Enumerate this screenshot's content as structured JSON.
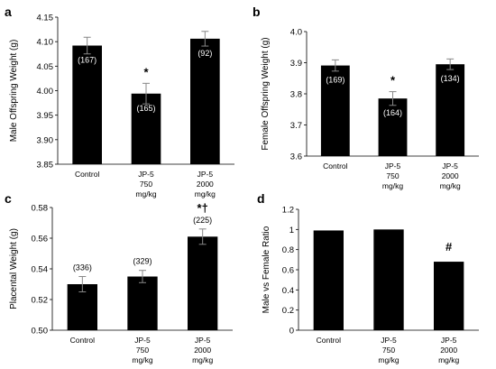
{
  "chart_data": [
    {
      "panel": "a",
      "type": "bar",
      "categories": [
        [
          "Control"
        ],
        [
          "JP-5",
          "750",
          "mg/kg"
        ],
        [
          "JP-5",
          "2000",
          "mg/kg"
        ]
      ],
      "values": [
        4.092,
        3.994,
        4.106
      ],
      "errors": [
        0.017,
        0.021,
        0.015
      ],
      "counts": [
        "(167)",
        "(165)",
        "(92)"
      ],
      "significance": [
        "",
        "*",
        ""
      ],
      "ylabel": "Male Offspring Weight (g)",
      "xlabel": "",
      "ylim": [
        3.85,
        4.15
      ],
      "yticks": [
        "3.85",
        "3.90",
        "3.95",
        "4.00",
        "4.05",
        "4.10",
        "4.15"
      ],
      "grid": false,
      "color": "#000000"
    },
    {
      "panel": "b",
      "type": "bar",
      "categories": [
        [
          "Control"
        ],
        [
          "JP-5",
          "750",
          "mg/kg"
        ],
        [
          "JP-5",
          "2000",
          "mg/kg"
        ]
      ],
      "values": [
        3.891,
        3.785,
        3.895
      ],
      "errors": [
        0.018,
        0.022,
        0.017
      ],
      "counts": [
        "(169)",
        "(164)",
        "(134)"
      ],
      "significance": [
        "",
        "*",
        ""
      ],
      "ylabel": "Female Offspring Weight (g)",
      "xlabel": "",
      "ylim": [
        3.6,
        4.0
      ],
      "yticks": [
        "3.6",
        "3.7",
        "3.8",
        "3.9",
        "4.0"
      ],
      "grid": false,
      "color": "#000000"
    },
    {
      "panel": "c",
      "type": "bar",
      "categories": [
        [
          "Control"
        ],
        [
          "JP-5",
          "750",
          "mg/kg"
        ],
        [
          "JP-5",
          "2000",
          "mg/kg"
        ]
      ],
      "values": [
        0.53,
        0.535,
        0.561
      ],
      "errors": [
        0.005,
        0.004,
        0.005
      ],
      "counts": [
        "(336)",
        "(329)",
        "(225)"
      ],
      "significance": [
        "",
        "",
        "*†"
      ],
      "ylabel": "Placental Weight (g)",
      "xlabel": "",
      "ylim": [
        0.5,
        0.58
      ],
      "yticks": [
        "0.50",
        "0.52",
        "0.54",
        "0.56",
        "0.58"
      ],
      "grid": false,
      "color": "#000000"
    },
    {
      "panel": "d",
      "type": "bar",
      "categories": [
        [
          "Control"
        ],
        [
          "JP-5",
          "750",
          "mg/kg"
        ],
        [
          "JP-5",
          "2000",
          "mg/kg"
        ]
      ],
      "values": [
        0.99,
        1.0,
        0.68
      ],
      "errors": [
        0,
        0,
        0
      ],
      "counts": [
        "",
        "",
        ""
      ],
      "significance": [
        "",
        "",
        "#"
      ],
      "ylabel": "Male vs Female Ratio",
      "xlabel": "",
      "ylim": [
        0,
        1.2
      ],
      "yticks": [
        "0",
        "0.2",
        "0.4",
        "0.6",
        "0.8",
        "1",
        "1.2"
      ],
      "grid": false,
      "color": "#000000"
    }
  ]
}
